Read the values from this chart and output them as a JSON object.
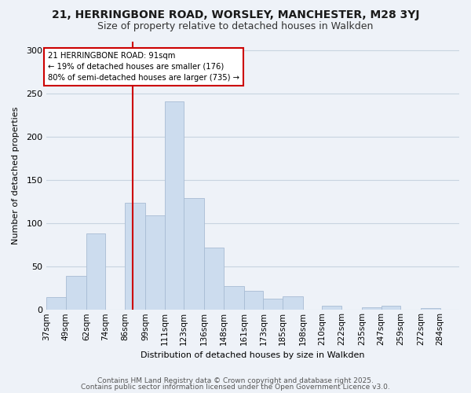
{
  "title_line1": "21, HERRINGBONE ROAD, WORSLEY, MANCHESTER, M28 3YJ",
  "title_line2": "Size of property relative to detached houses in Walkden",
  "xlabel": "Distribution of detached houses by size in Walkden",
  "ylabel": "Number of detached properties",
  "footer_line1": "Contains HM Land Registry data © Crown copyright and database right 2025.",
  "footer_line2": "Contains public sector information licensed under the Open Government Licence v3.0.",
  "bin_edges": [
    37,
    49,
    62,
    74,
    86,
    99,
    111,
    123,
    136,
    148,
    161,
    173,
    185,
    198,
    210,
    222,
    235,
    247,
    259,
    272,
    284,
    296
  ],
  "counts": [
    15,
    39,
    88,
    0,
    124,
    109,
    241,
    129,
    72,
    27,
    22,
    13,
    16,
    0,
    5,
    0,
    3,
    5,
    0,
    2,
    0
  ],
  "bar_color": "#ccdcee",
  "bar_edge_color": "#a8bcd4",
  "grid_color": "#c8d4e0",
  "vline_x": 91,
  "vline_color": "#cc0000",
  "annotation_text": "21 HERRINGBONE ROAD: 91sqm\n← 19% of detached houses are smaller (176)\n80% of semi-detached houses are larger (735) →",
  "annotation_box_color": "#ffffff",
  "annotation_box_edge": "#cc0000",
  "ylim": [
    0,
    310
  ],
  "yticks": [
    0,
    50,
    100,
    150,
    200,
    250,
    300
  ],
  "tick_labels": [
    "37sqm",
    "49sqm",
    "62sqm",
    "74sqm",
    "86sqm",
    "99sqm",
    "111sqm",
    "123sqm",
    "136sqm",
    "148sqm",
    "161sqm",
    "173sqm",
    "185sqm",
    "198sqm",
    "210sqm",
    "222sqm",
    "235sqm",
    "247sqm",
    "259sqm",
    "272sqm",
    "284sqm"
  ],
  "bg_color": "#eef2f8",
  "title_fontsize": 10,
  "subtitle_fontsize": 9,
  "ylabel_fontsize": 8,
  "xlabel_fontsize": 8,
  "tick_fontsize": 7.5,
  "footer_fontsize": 6.5
}
